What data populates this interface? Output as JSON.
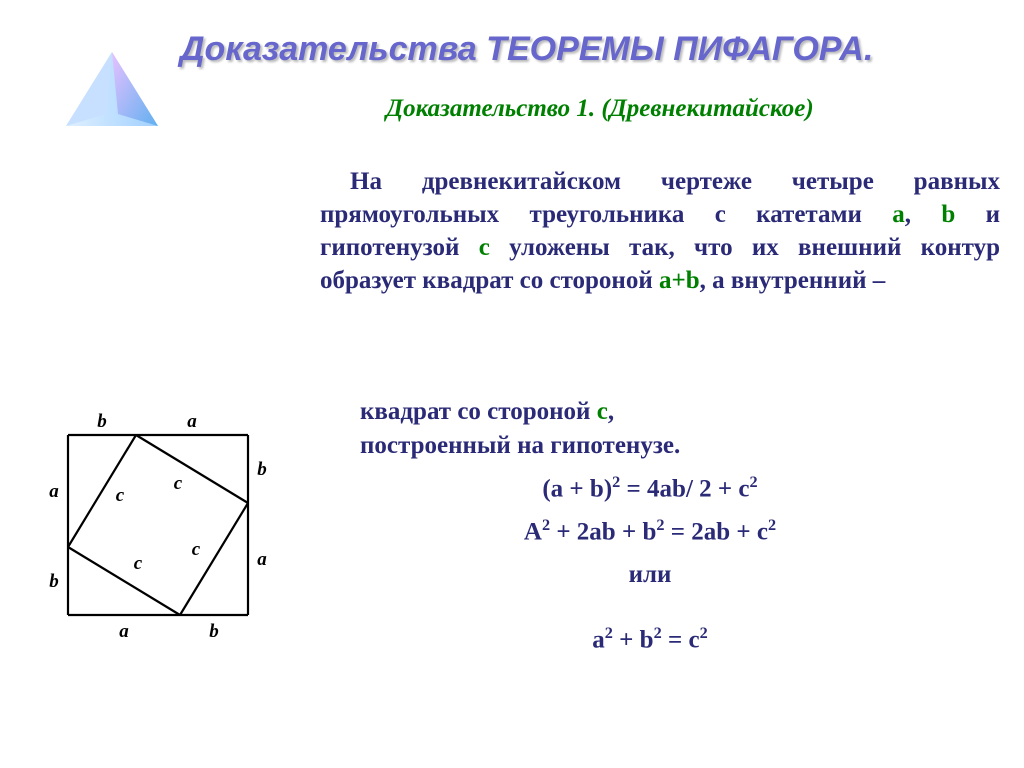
{
  "title": {
    "part1": "Доказательства ",
    "part2": "ТЕОРЕМЫ ПИФАГОРА.",
    "color": "#6666cc"
  },
  "subtitle": {
    "text": "Доказательство 1. (Древнекитайское)",
    "color": "#008000"
  },
  "colors": {
    "body_text": "#2a2a77",
    "a": "#008000",
    "b": "#008000",
    "c": "#008000",
    "ab": "#008000"
  },
  "paragraph": {
    "seg1": "На древнекитайском чертеже четыре равных прямоугольных треугольника с катетами ",
    "a": "а",
    "seg2": ", ",
    "b": "b",
    "seg3": " и гипотенузой ",
    "c1": "с",
    "seg4": " уложены так, что их внешний контур образует квадрат со стороной ",
    "ab": "а+b",
    "seg5": ", а внутренний –"
  },
  "line_square": {
    "seg1": "квадрат со стороной ",
    "c": "с",
    "seg2": ","
  },
  "line_hypo": "построенный на гипотенузе.",
  "formula": {
    "l1_lhs": "(a + b)",
    "l1_eq": " =  ",
    "l1_rhs": "4ab/ 2 + c",
    "l2_lhs1": "A",
    "l2_lhs2": " + 2ab + b",
    "l2_eq": " = ",
    "l2_rhs1": "2ab + c",
    "or": "или",
    "l3_a": "a",
    "l3_plus": " + ",
    "l3_b": "b",
    "l3_eq": " = ",
    "l3_c": "c"
  },
  "diagram": {
    "a": "a",
    "b": "b",
    "c": "c",
    "label_font": "italic bold 19px 'Times New Roman', serif",
    "stroke": "#000000",
    "outer_side": 180,
    "a_len": 112,
    "b_len": 68
  },
  "logo": {
    "fill1": "#a0d0ff",
    "fill2": "#60b0f0",
    "fill3": "#d0e8ff",
    "highlight": "#e8c0ff"
  }
}
